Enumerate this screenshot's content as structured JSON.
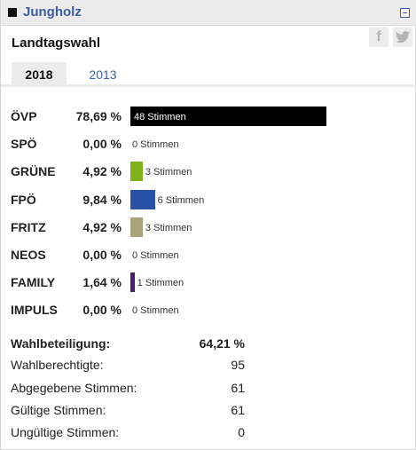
{
  "header": {
    "title": "Jungholz"
  },
  "share": {
    "facebook": "f",
    "twitter": "t"
  },
  "election": {
    "title": "Landtagswahl"
  },
  "tabs": [
    {
      "label": "2018",
      "active": true
    },
    {
      "label": "2013",
      "active": false
    }
  ],
  "results": [
    {
      "party": "ÖVP",
      "percent": "78,69 %",
      "votes": "48 Stimmen",
      "share": 78.69,
      "color": "#000000"
    },
    {
      "party": "SPÖ",
      "percent": "0,00 %",
      "votes": "0 Stimmen",
      "share": 0,
      "color": "#e30613"
    },
    {
      "party": "GRÜNE",
      "percent": "4,92 %",
      "votes": "3 Stimmen",
      "share": 4.92,
      "color": "#7fb11b"
    },
    {
      "party": "FPÖ",
      "percent": "9,84 %",
      "votes": "6 Stimmen",
      "share": 9.84,
      "color": "#2a52a4"
    },
    {
      "party": "FRITZ",
      "percent": "4,92 %",
      "votes": "3 Stimmen",
      "share": 4.92,
      "color": "#a8a27a"
    },
    {
      "party": "NEOS",
      "percent": "0,00 %",
      "votes": "0 Stimmen",
      "share": 0,
      "color": "#e4007e"
    },
    {
      "party": "FAMILY",
      "percent": "1,64 %",
      "votes": "1 Stimmen",
      "share": 1.64,
      "color": "#4b1d6f"
    },
    {
      "party": "IMPULS",
      "percent": "0,00 %",
      "votes": "0 Stimmen",
      "share": 0,
      "color": "#888888"
    }
  ],
  "summary": {
    "turnout_label": "Wahlbeteiligung:",
    "turnout_value": "64,21 %",
    "eligible_label": "Wahlberechtigte:",
    "eligible_value": "95",
    "cast_label": "Abgegebene Stimmen:",
    "cast_value": "61",
    "valid_label": "Gültige Stimmen:",
    "valid_value": "61",
    "invalid_label": "Ungültige Stimmen:",
    "invalid_value": "0"
  }
}
